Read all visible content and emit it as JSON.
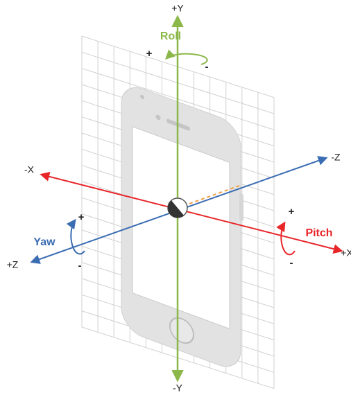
{
  "axes": {
    "y": {
      "positive": "+Y",
      "negative": "-Y"
    },
    "x": {
      "positive": "+X",
      "negative": "-X"
    },
    "z": {
      "positive": "+Z",
      "negative": "-Z"
    }
  },
  "rotations": {
    "roll": {
      "label": "Roll",
      "plus": "+",
      "minus": "-"
    },
    "yaw": {
      "label": "Yaw",
      "plus": "+",
      "minus": "-"
    },
    "pitch": {
      "label": "Pitch",
      "plus": "+",
      "minus": "-"
    }
  }
}
